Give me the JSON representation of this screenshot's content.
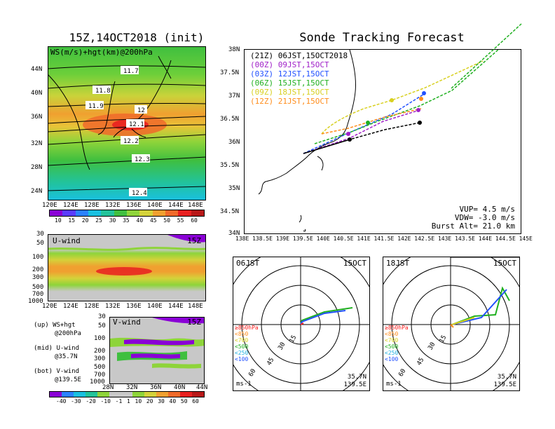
{
  "init_title": "15Z,14OCT2018 (init)",
  "map_panel": {
    "overlay_label": "WS(m/s)+hgt(km)@200hPa",
    "lat_ticks": [
      "44N",
      "40N",
      "36N",
      "32N",
      "28N",
      "24N"
    ],
    "lon_ticks": [
      "120E",
      "124E",
      "128E",
      "132E",
      "136E",
      "140E",
      "144E",
      "148E"
    ],
    "contour_labels": [
      "11.7",
      "11.8",
      "11.9",
      "12",
      "12.1",
      "12.2",
      "12.3",
      "12.4"
    ]
  },
  "ws_colorbar": {
    "labels": [
      "10",
      "15",
      "20",
      "25",
      "30",
      "35",
      "40",
      "45",
      "50",
      "55",
      "60"
    ],
    "colors": [
      "#8a00d6",
      "#5a3cff",
      "#2b82ff",
      "#19c0e0",
      "#22c39a",
      "#3fbf3f",
      "#8ed43a",
      "#d4d23a",
      "#f0a030",
      "#f06a2a",
      "#e82020",
      "#b81818"
    ]
  },
  "u_panel": {
    "title": "U-wind",
    "time": "15Z",
    "pressure_ticks": [
      "30",
      "50",
      "100",
      "200",
      "300",
      "500",
      "700",
      "1000"
    ],
    "lon_ticks": [
      "120E",
      "124E",
      "128E",
      "132E",
      "136E",
      "140E",
      "144E",
      "148E"
    ]
  },
  "v_panel": {
    "title": "V-wind",
    "time": "15Z",
    "pressure_ticks": [
      "30",
      "50",
      "100",
      "200",
      "300",
      "500",
      "700",
      "1000"
    ],
    "lat_ticks": [
      "28N",
      "32N",
      "36N",
      "40N",
      "44N"
    ]
  },
  "legend_notes": [
    {
      "a": "(up) WS+hgt",
      "b": "@200hPa"
    },
    {
      "a": "(mid) U-wind",
      "b": "@35.7N"
    },
    {
      "a": "(bot) V-wind",
      "b": "@139.5E"
    }
  ],
  "wind_colorbar": {
    "labels": [
      "-40",
      "-30",
      "-20",
      "-10",
      "-1",
      "1",
      "10",
      "20",
      "30",
      "40",
      "50",
      "60"
    ],
    "colors": [
      "#8a00d6",
      "#2b82ff",
      "#19c0e0",
      "#22c39a",
      "#8ed43a",
      "#c8c8c8",
      "#c8c8c8",
      "#8ed43a",
      "#d4d23a",
      "#f0a030",
      "#f06a2a",
      "#e82020",
      "#b81818"
    ]
  },
  "forecast_title": "Sonde Tracking Forecast",
  "track_map": {
    "lat_ticks": [
      "38N",
      "37.5N",
      "37N",
      "36.5N",
      "36N",
      "35.5N",
      "35N",
      "34.5N",
      "34N"
    ],
    "lon_ticks": [
      "138E",
      "138.5E",
      "139E",
      "139.5E",
      "140E",
      "140.5E",
      "141E",
      "141.5E",
      "142E",
      "142.5E",
      "143E",
      "143.5E",
      "144E",
      "144.5E",
      "145E"
    ],
    "launches": [
      {
        "code": "(21Z)",
        "label": "06JST,15OCT2018",
        "color": "#000000"
      },
      {
        "code": "(00Z)",
        "label": "09JST,15OCT",
        "color": "#a020c8"
      },
      {
        "code": "(03Z)",
        "label": "12JST,15OCT",
        "color": "#2050ff"
      },
      {
        "code": "(06Z)",
        "label": "15JST,15OCT",
        "color": "#20b020"
      },
      {
        "code": "(09Z)",
        "label": "18JST,15OCT",
        "color": "#d8d020"
      },
      {
        "code": "(12Z)",
        "label": "21JST,15OCT",
        "color": "#ff8c1a"
      }
    ],
    "params": [
      "VUP= 4.5 m/s",
      "VDW= -3.0 m/s",
      "Burst Alt= 21.0 km"
    ]
  },
  "hodographs": [
    {
      "time": "06JST",
      "date": "15OCT",
      "loc1": "35.7N",
      "loc2": "139.5E",
      "unit": "ms-1",
      "ring_labels": [
        "15",
        "30",
        "45",
        "60"
      ]
    },
    {
      "time": "18JST",
      "date": "15OCT",
      "loc1": "35.7N",
      "loc2": "139.5E",
      "unit": "ms-1",
      "ring_labels": [
        "15",
        "30",
        "45",
        "60"
      ]
    }
  ],
  "level_legend": [
    {
      "text": "≥850hPa",
      "color": "#ff2020"
    },
    {
      "text": "<850",
      "color": "#ff8c1a"
    },
    {
      "text": "<700",
      "color": "#d8d020"
    },
    {
      "text": "<500",
      "color": "#20b020"
    },
    {
      "text": "<250",
      "color": "#20b0e0"
    },
    {
      "text": "<100",
      "color": "#2050ff"
    }
  ]
}
